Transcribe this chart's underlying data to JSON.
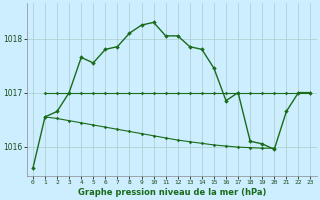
{
  "title": "Graphe pression niveau de la mer (hPa)",
  "background_color": "#cceeff",
  "grid_color": "#aacccc",
  "line_color": "#1a6b1a",
  "xlim": [
    -0.5,
    23.5
  ],
  "ylim": [
    1015.45,
    1018.65
  ],
  "yticks": [
    1016,
    1017,
    1018
  ],
  "xticks": [
    0,
    1,
    2,
    3,
    4,
    5,
    6,
    7,
    8,
    9,
    10,
    11,
    12,
    13,
    14,
    15,
    16,
    17,
    18,
    19,
    20,
    21,
    22,
    23
  ],
  "series1_x": [
    0,
    1,
    2,
    3,
    4,
    5,
    6,
    7,
    8,
    9,
    10,
    11,
    12,
    13,
    14,
    15,
    16,
    17,
    18,
    19,
    20,
    21,
    22,
    23
  ],
  "series1_y": [
    1015.6,
    1016.55,
    1016.65,
    1017.0,
    1017.65,
    1017.55,
    1017.8,
    1017.85,
    1018.1,
    1018.25,
    1018.3,
    1018.05,
    1018.05,
    1017.85,
    1017.8,
    1017.45,
    1016.85,
    1017.0,
    1016.1,
    1016.05,
    1015.95,
    1016.65,
    1017.0,
    1017.0
  ],
  "series2_x": [
    1,
    2,
    3,
    4,
    5,
    6,
    7,
    8,
    9,
    10,
    11,
    12,
    13,
    14,
    15,
    16,
    17,
    18,
    19,
    20,
    21,
    22,
    23
  ],
  "series2_y": [
    1017.0,
    1017.0,
    1017.0,
    1017.0,
    1017.0,
    1017.0,
    1017.0,
    1017.0,
    1017.0,
    1017.0,
    1017.0,
    1017.0,
    1017.0,
    1017.0,
    1017.0,
    1017.0,
    1017.0,
    1017.0,
    1017.0,
    1017.0,
    1017.0,
    1017.0,
    1017.0
  ],
  "series3_x": [
    1,
    2,
    3,
    4,
    5,
    6,
    7,
    8,
    9,
    10,
    11,
    12,
    13,
    14,
    15,
    16,
    17,
    18,
    19,
    20
  ],
  "series3_y": [
    1016.55,
    1016.52,
    1016.48,
    1016.44,
    1016.4,
    1016.36,
    1016.32,
    1016.28,
    1016.24,
    1016.2,
    1016.16,
    1016.12,
    1016.09,
    1016.06,
    1016.03,
    1016.01,
    1015.99,
    1015.98,
    1015.97,
    1015.97
  ]
}
